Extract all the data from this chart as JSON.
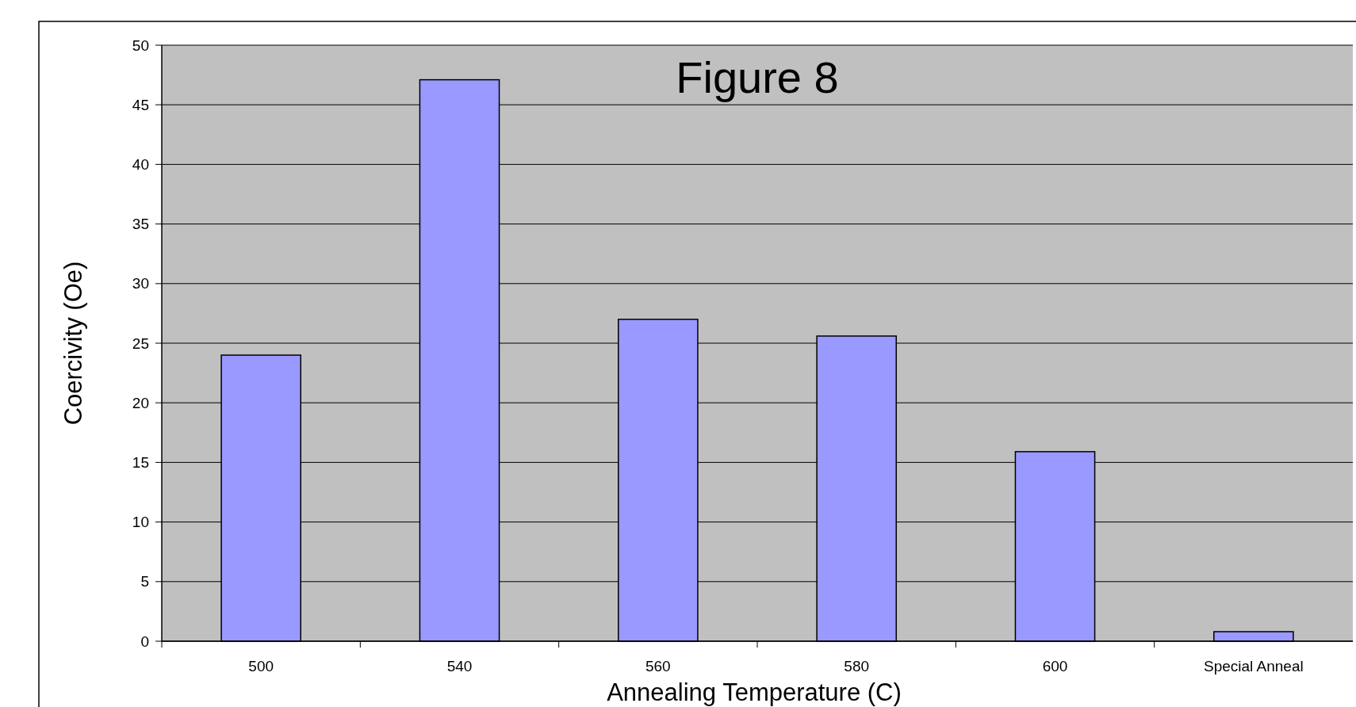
{
  "chart_data": {
    "type": "bar",
    "title": "Figure 8",
    "xlabel": "Annealing Temperature (C)",
    "ylabel": "Coercivity (Oe)",
    "categories": [
      "500",
      "540",
      "560",
      "580",
      "600",
      "Special Anneal"
    ],
    "values": [
      24,
      47.1,
      27,
      25.6,
      15.9,
      0.8
    ],
    "color": "#9999ff",
    "ylim": [
      0,
      50
    ],
    "yticks": [
      0,
      5,
      10,
      15,
      20,
      25,
      30,
      35,
      40,
      45,
      50
    ],
    "grid": "y"
  }
}
